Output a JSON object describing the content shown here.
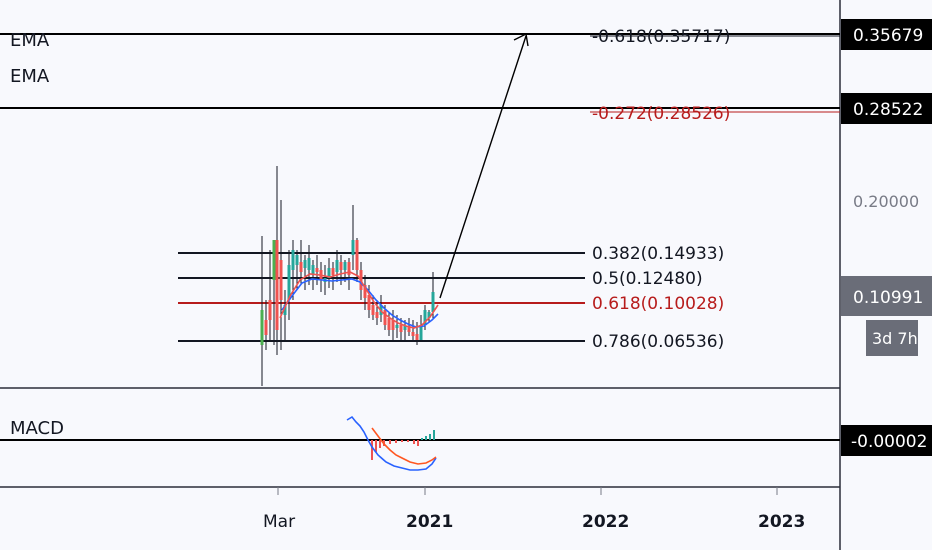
{
  "chart_data": {
    "type": "candlestick",
    "price_scale": "log",
    "price_axis_labels": [
      "0.20000"
    ],
    "price_badges": [
      {
        "value": "0.35679",
        "style": "black"
      },
      {
        "value": "0.28522",
        "style": "black"
      },
      {
        "value": "0.10991",
        "style": "gray"
      },
      {
        "value": "3d 7h",
        "style": "gray"
      },
      {
        "value": "-0.00002",
        "style": "black"
      }
    ],
    "time_axis_labels": [
      "Mar",
      "2021",
      "2022",
      "2023"
    ],
    "indicators": [
      "EMA",
      "EMA",
      "MACD"
    ],
    "fib_levels": [
      {
        "label": "0.382(0.14933)",
        "price": 0.14933,
        "color": "#131722"
      },
      {
        "label": "0.5(0.12480)",
        "price": 0.1248,
        "color": "#131722"
      },
      {
        "label": "0.618(0.10028)",
        "price": 0.10028,
        "color": "#b71c1c"
      },
      {
        "label": "0.786(0.06536)",
        "price": 0.06536,
        "color": "#131722"
      }
    ],
    "fib_extensions": [
      {
        "label": "-0.618(0.35717)",
        "price": 0.35717,
        "color": "#131722"
      },
      {
        "label": "-0.272(0.28526)",
        "price": 0.28526,
        "color": "#b71c1c"
      }
    ],
    "horizontal_lines": [
      0.35679,
      0.28522
    ],
    "colors": {
      "up": "#26a69a",
      "up_bright": "#4caf50",
      "down": "#ef5350",
      "ema_fast": "#ef5350",
      "ema_slow": "#2962ff",
      "macd": "#2962ff",
      "signal": "#ff5722"
    }
  }
}
